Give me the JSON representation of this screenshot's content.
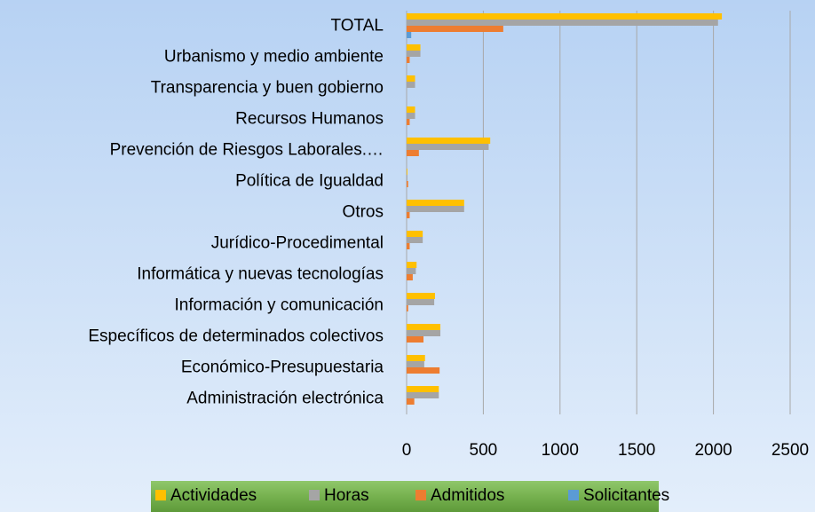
{
  "chart_data": {
    "type": "bar",
    "orientation": "horizontal",
    "categories": [
      "TOTAL",
      "Urbanismo y medio ambiente",
      "Transparencia y buen gobierno",
      "Recursos Humanos",
      "Prevención de Riesgos Laborales.…",
      "Política de Igualdad",
      "Otros",
      "Jurídico-Procedimental",
      "Informática y nuevas tecnologías",
      "Información y comunicación",
      "Específicos de determinados colectivos",
      "Económico-Presupuestaria",
      "Administración electrónica"
    ],
    "series": [
      {
        "name": "Actividades",
        "color": "#ffc000",
        "values": [
          2055,
          90,
          55,
          55,
          545,
          5,
          375,
          105,
          65,
          185,
          220,
          120,
          210
        ]
      },
      {
        "name": "Horas",
        "color": "#a5a5a5",
        "values": [
          2030,
          90,
          55,
          55,
          535,
          5,
          375,
          105,
          60,
          180,
          220,
          115,
          210
        ]
      },
      {
        "name": "Admitidos",
        "color": "#ed7d31",
        "values": [
          630,
          20,
          0,
          20,
          80,
          10,
          20,
          20,
          40,
          10,
          110,
          215,
          50
        ]
      },
      {
        "name": "Solicitantes",
        "color": "#5b9bd5",
        "values": [
          30,
          0,
          0,
          0,
          0,
          0,
          0,
          0,
          0,
          0,
          0,
          0,
          0
        ]
      }
    ],
    "xlim": [
      0,
      2500
    ],
    "xticks": [
      0,
      500,
      1000,
      1500,
      2000,
      2500
    ],
    "grid": true,
    "legend": "bottom"
  }
}
